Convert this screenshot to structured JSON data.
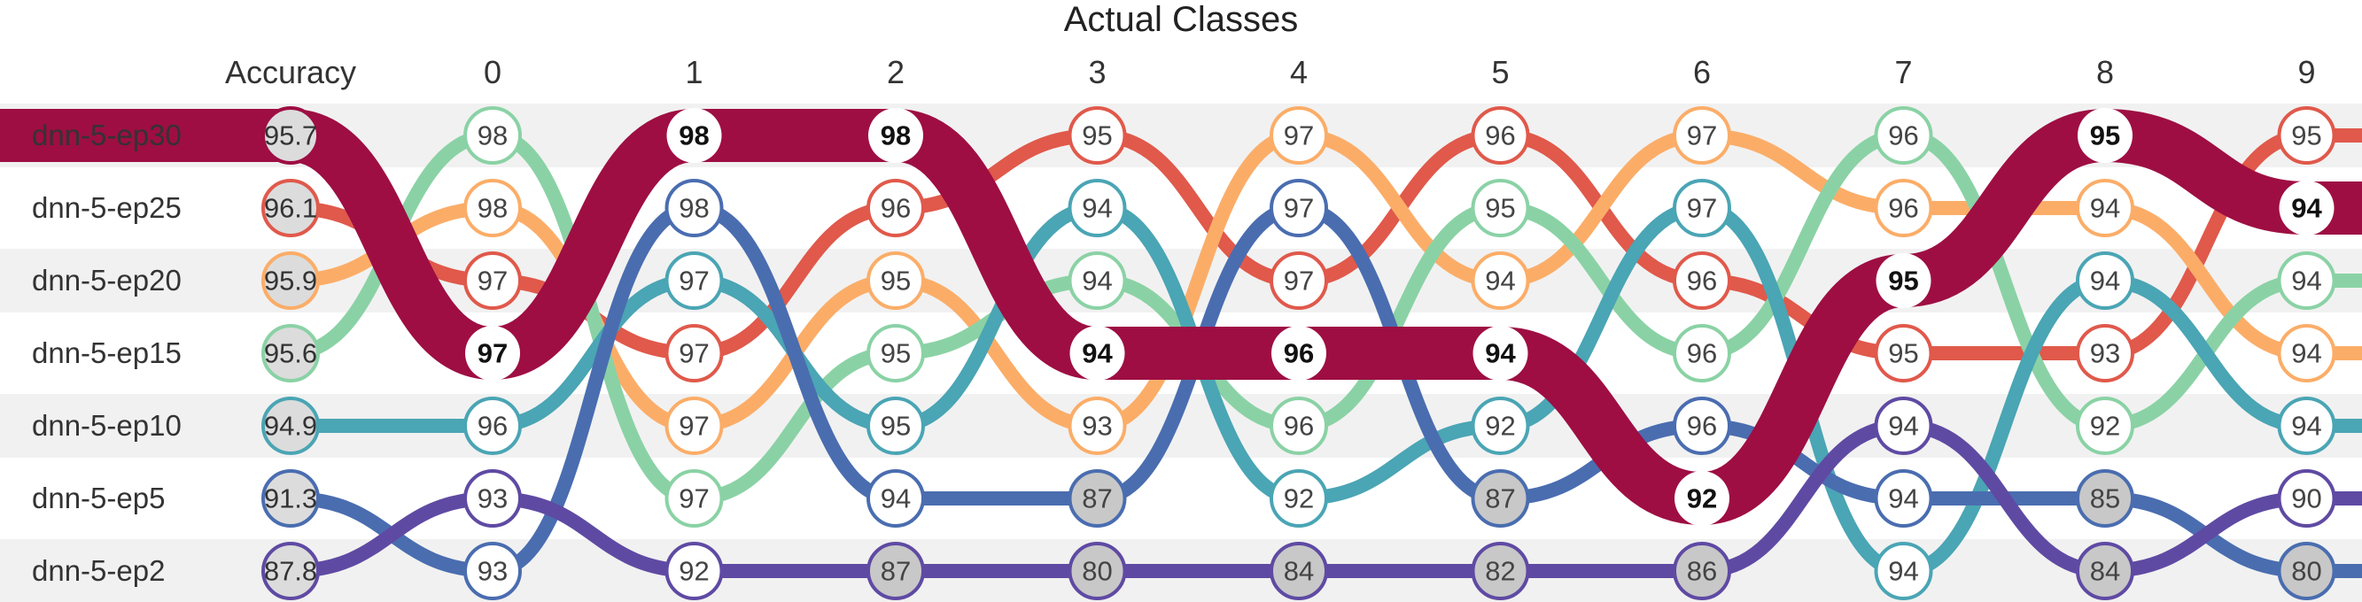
{
  "chart_data": {
    "type": "bump",
    "title": "Actual Classes",
    "accuracy_header": "Accuracy",
    "categories": [
      "0",
      "1",
      "2",
      "3",
      "4",
      "5",
      "6",
      "7",
      "8",
      "9"
    ],
    "series": [
      {
        "name": "dnn-5-ep30",
        "color": "#9e0e43",
        "accuracy": "95.7",
        "values": [
          97,
          98,
          98,
          94,
          96,
          94,
          92,
          95,
          95,
          94
        ]
      },
      {
        "name": "dnn-5-ep25",
        "color": "#e0594b",
        "accuracy": "96.1",
        "values": [
          97,
          97,
          96,
          95,
          97,
          96,
          96,
          95,
          93,
          95
        ]
      },
      {
        "name": "dnn-5-ep20",
        "color": "#fbad68",
        "accuracy": "95.9",
        "values": [
          98,
          97,
          95,
          93,
          97,
          94,
          97,
          96,
          94,
          94
        ]
      },
      {
        "name": "dnn-5-ep15",
        "color": "#8ad2a5",
        "accuracy": "95.6",
        "values": [
          98,
          97,
          95,
          94,
          96,
          95,
          96,
          96,
          92,
          94
        ]
      },
      {
        "name": "dnn-5-ep10",
        "color": "#4aa5b4",
        "accuracy": "94.9",
        "values": [
          96,
          97,
          95,
          94,
          92,
          92,
          97,
          94,
          94,
          94
        ]
      },
      {
        "name": "dnn-5-ep5",
        "color": "#4a6db0",
        "accuracy": "91.3",
        "values": [
          93,
          98,
          94,
          87,
          97,
          87,
          96,
          94,
          85,
          80
        ]
      },
      {
        "name": "dnn-5-ep2",
        "color": "#5f4aa3",
        "accuracy": "87.8",
        "values": [
          93,
          92,
          87,
          80,
          84,
          82,
          86,
          94,
          84,
          90
        ]
      }
    ],
    "ranks": [
      [
        3,
        0,
        0,
        3,
        3,
        3,
        5,
        2,
        0,
        1
      ],
      [
        2,
        3,
        1,
        0,
        2,
        0,
        2,
        3,
        3,
        0
      ],
      [
        1,
        4,
        2,
        4,
        0,
        2,
        0,
        1,
        1,
        3
      ],
      [
        0,
        5,
        3,
        2,
        4,
        1,
        3,
        0,
        4,
        2
      ],
      [
        4,
        2,
        4,
        1,
        5,
        4,
        1,
        6,
        2,
        4
      ],
      [
        6,
        1,
        5,
        5,
        1,
        5,
        4,
        5,
        5,
        6
      ],
      [
        5,
        6,
        6,
        6,
        6,
        6,
        6,
        4,
        6,
        5
      ]
    ],
    "highlight_series": "dnn-5-ep30",
    "banded_rows": true,
    "legend": "none"
  }
}
